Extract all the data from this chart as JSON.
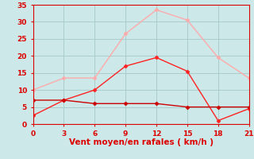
{
  "x": [
    0,
    3,
    6,
    9,
    12,
    15,
    18,
    21
  ],
  "line_gusts": [
    10,
    13.5,
    13.5,
    26.5,
    33.5,
    30.5,
    19.5,
    13.5
  ],
  "line_mean": [
    2.5,
    7,
    10,
    17,
    19.5,
    15.5,
    1,
    4.5
  ],
  "line_flat": [
    7,
    7,
    6,
    6,
    6,
    5,
    5,
    5
  ],
  "color_gusts": "#ffaaaa",
  "color_mean": "#ff2222",
  "color_flat": "#cc0000",
  "xlabel": "Vent moyen/en rafales ( km/h )",
  "xlim": [
    0,
    21
  ],
  "ylim": [
    0,
    35
  ],
  "yticks": [
    0,
    5,
    10,
    15,
    20,
    25,
    30,
    35
  ],
  "xticks": [
    0,
    3,
    6,
    9,
    12,
    15,
    18,
    21
  ],
  "bg_color": "#cce8e8",
  "grid_color": "#aacccc",
  "xlabel_color": "#dd0000",
  "tick_color": "#dd0000",
  "spine_color": "#dd0000",
  "marker": "D",
  "marker_size": 2.5,
  "linewidth": 1.0,
  "tick_fontsize": 6.5,
  "xlabel_fontsize": 7.5
}
